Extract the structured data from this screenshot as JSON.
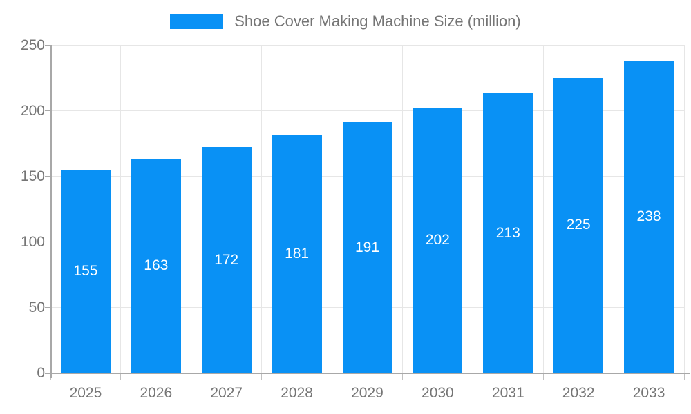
{
  "chart_data": {
    "type": "bar",
    "title": "Shoe Cover Making Machine Size (million)",
    "categories": [
      "2025",
      "2026",
      "2027",
      "2028",
      "2029",
      "2030",
      "2031",
      "2032",
      "2033"
    ],
    "values": [
      155,
      163,
      172,
      181,
      191,
      202,
      213,
      225,
      238
    ],
    "xlabel": "",
    "ylabel": "",
    "ylim": [
      0,
      250
    ],
    "y_ticks": [
      0,
      50,
      100,
      150,
      200,
      250
    ],
    "grid": "on",
    "legend_position": "top-center",
    "legend_entries": [
      "Shoe Cover Making Machine Size (million)"
    ],
    "data_labels": "inside-center-white"
  },
  "colors": {
    "bar_fill": "#0991F5",
    "gridline": "#e6e6e6",
    "axis_line": "#a8a8a8",
    "tick_text": "#757575",
    "legend_text": "#757575",
    "value_label_text": "#ffffff",
    "background": "#ffffff"
  }
}
